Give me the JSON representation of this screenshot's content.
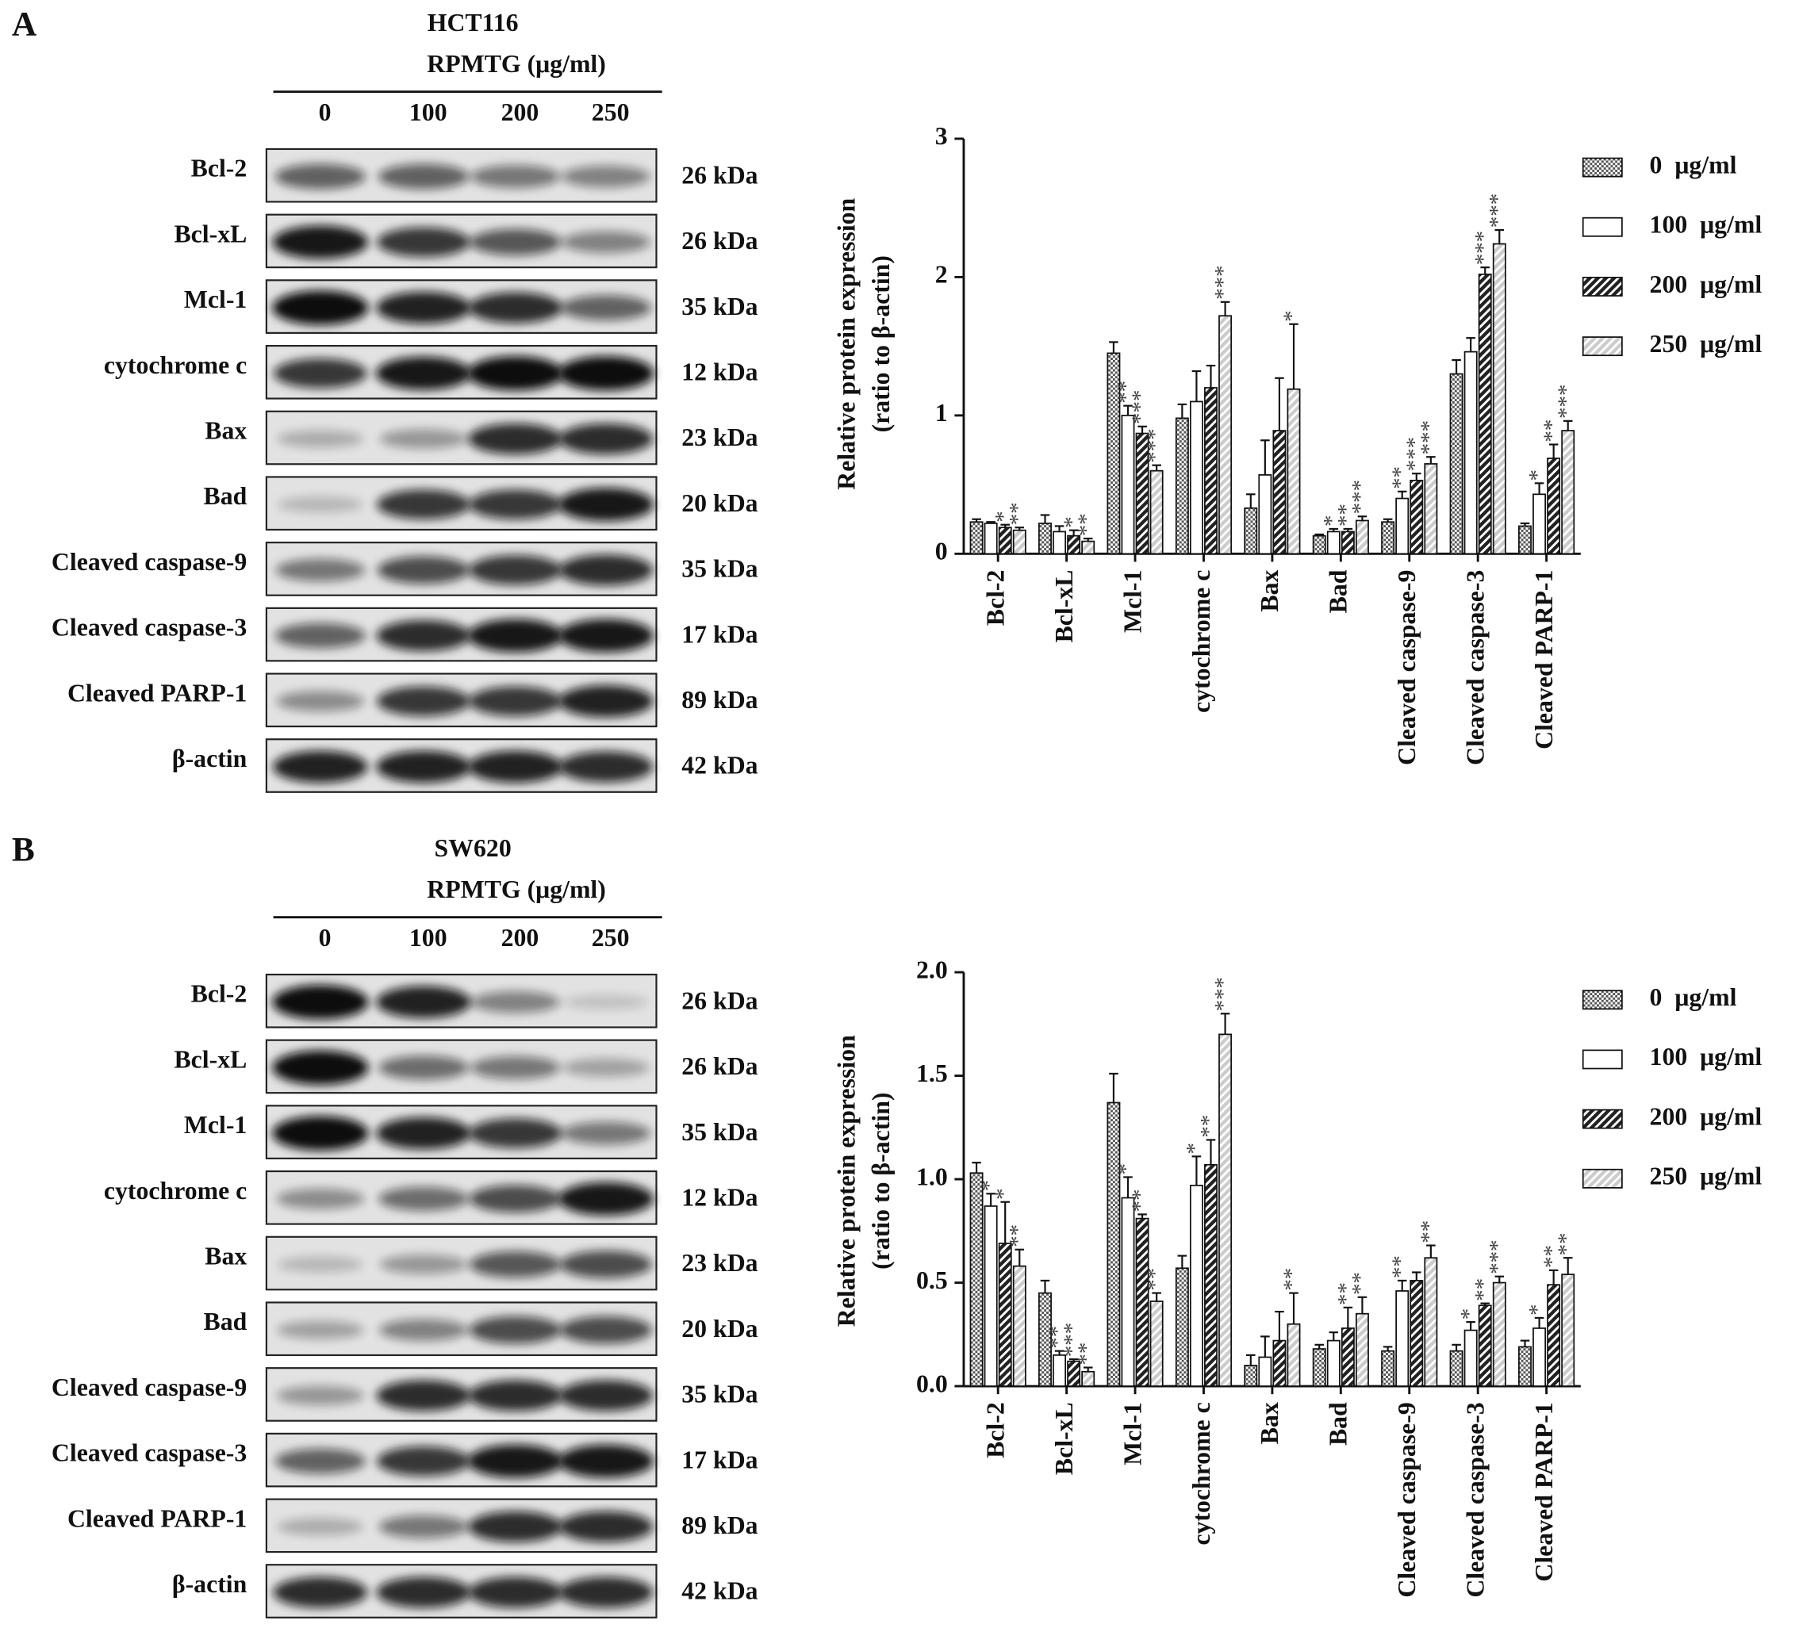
{
  "panels": [
    {
      "label": "A",
      "cell_line": "HCT116",
      "treatment": "RPMTG (μg/ml)",
      "doses": [
        "0",
        "100",
        "200",
        "250"
      ],
      "blots": [
        {
          "protein": "Bcl-2",
          "size": "26 kDa"
        },
        {
          "protein": "Bcl-xL",
          "size": "26 kDa"
        },
        {
          "protein": "Mcl-1",
          "size": "35 kDa"
        },
        {
          "protein": "cytochrome c",
          "size": "12 kDa"
        },
        {
          "protein": "Bax",
          "size": "23 kDa"
        },
        {
          "protein": "Bad",
          "size": "20 kDa"
        },
        {
          "protein": "Cleaved caspase-9",
          "size": "35 kDa"
        },
        {
          "protein": "Cleaved caspase-3",
          "size": "17 kDa"
        },
        {
          "protein": "Cleaved PARP-1",
          "size": "89 kDa"
        },
        {
          "protein": "β-actin",
          "size": "42 kDa"
        }
      ]
    },
    {
      "label": "B",
      "cell_line": "SW620",
      "treatment": "RPMTG (μg/ml)",
      "doses": [
        "0",
        "100",
        "200",
        "250"
      ],
      "blots": [
        {
          "protein": "Bcl-2",
          "size": "26 kDa"
        },
        {
          "protein": "Bcl-xL",
          "size": "26 kDa"
        },
        {
          "protein": "Mcl-1",
          "size": "35 kDa"
        },
        {
          "protein": "cytochrome c",
          "size": "12 kDa"
        },
        {
          "protein": "Bax",
          "size": "23 kDa"
        },
        {
          "protein": "Bad",
          "size": "20 kDa"
        },
        {
          "protein": "Cleaved caspase-9",
          "size": "35 kDa"
        },
        {
          "protein": "Cleaved caspase-3",
          "size": "17 kDa"
        },
        {
          "protein": "Cleaved PARP-1",
          "size": "89 kDa"
        },
        {
          "protein": "β-actin",
          "size": "42 kDa"
        }
      ]
    }
  ],
  "chart_data": [
    {
      "type": "bar",
      "ylabel": [
        "Relative protein expression",
        "(ratio to β-actin)"
      ],
      "categories": [
        "Bcl-2",
        "Bcl-xL",
        "Mcl-1",
        "cytochrome c",
        "Bax",
        "Bad",
        "Cleaved caspase-9",
        "Cleaved caspase-3",
        "Cleaved PARP-1"
      ],
      "ylim": [
        0,
        3
      ],
      "yticks": [
        0,
        1,
        2,
        3
      ],
      "grid": false,
      "legend": "right",
      "series": [
        {
          "name": "0  μg/ml",
          "color": "#555555",
          "pattern": "checker",
          "values": [
            0.23,
            0.22,
            1.45,
            0.98,
            0.33,
            0.13,
            0.23,
            1.3,
            0.2
          ],
          "errors": [
            0.02,
            0.06,
            0.08,
            0.1,
            0.1,
            0.01,
            0.02,
            0.1,
            0.02
          ],
          "significance": [
            null,
            null,
            null,
            null,
            null,
            null,
            null,
            null,
            null
          ]
        },
        {
          "name": "100  μg/ml",
          "color": "#ffffff",
          "pattern": "solid",
          "values": [
            0.22,
            0.16,
            1.0,
            1.1,
            0.57,
            0.16,
            0.4,
            1.46,
            0.43
          ],
          "errors": [
            0.01,
            0.04,
            0.07,
            0.22,
            0.25,
            0.02,
            0.05,
            0.1,
            0.08
          ],
          "significance": [
            null,
            null,
            "**",
            null,
            null,
            "*",
            "**",
            null,
            "*"
          ]
        },
        {
          "name": "200  μg/ml",
          "color": "#222222",
          "pattern": "hatch",
          "values": [
            0.19,
            0.13,
            0.87,
            1.2,
            0.89,
            0.16,
            0.53,
            2.02,
            0.69
          ],
          "errors": [
            0.02,
            0.04,
            0.05,
            0.16,
            0.38,
            0.02,
            0.05,
            0.05,
            0.1
          ],
          "significance": [
            "*",
            "*",
            "***",
            null,
            null,
            "**",
            "***",
            "***",
            "**"
          ]
        },
        {
          "name": "250  μg/ml",
          "color": "#cccccc",
          "pattern": "hatch",
          "values": [
            0.17,
            0.09,
            0.6,
            1.72,
            1.19,
            0.24,
            0.65,
            2.24,
            0.89
          ],
          "errors": [
            0.02,
            0.02,
            0.04,
            0.1,
            0.47,
            0.03,
            0.05,
            0.1,
            0.07
          ],
          "significance": [
            "**",
            "**",
            "***",
            "***",
            "*",
            "***",
            "***",
            "***",
            "***"
          ]
        }
      ]
    },
    {
      "type": "bar",
      "ylabel": [
        "Relative protein expression",
        "(ratio to β-actin)"
      ],
      "categories": [
        "Bcl-2",
        "Bcl-xL",
        "Mcl-1",
        "cytochrome c",
        "Bax",
        "Bad",
        "Cleaved caspase-9",
        "Cleaved caspase-3",
        "Cleaved PARP-1"
      ],
      "ylim": [
        0,
        2
      ],
      "yticks": [
        {
          "value": 0,
          "label": "0.0"
        },
        {
          "value": 0.5,
          "label": "0.5"
        },
        {
          "value": 1,
          "label": "1.0"
        },
        {
          "value": 1.5,
          "label": "1.5"
        },
        {
          "value": 2,
          "label": "2.0"
        }
      ],
      "grid": false,
      "legend": "right",
      "series": [
        {
          "name": "0  μg/ml",
          "color": "#555555",
          "pattern": "checker",
          "values": [
            1.03,
            0.45,
            1.37,
            0.57,
            0.1,
            0.18,
            0.17,
            0.17,
            0.19
          ],
          "errors": [
            0.05,
            0.06,
            0.14,
            0.06,
            0.05,
            0.02,
            0.02,
            0.03,
            0.03
          ],
          "significance": [
            null,
            null,
            null,
            null,
            null,
            null,
            null,
            null,
            null
          ]
        },
        {
          "name": "100  μg/ml",
          "color": "#ffffff",
          "pattern": "solid",
          "values": [
            0.87,
            0.15,
            0.91,
            0.97,
            0.14,
            0.22,
            0.46,
            0.27,
            0.28
          ],
          "errors": [
            0.06,
            0.02,
            0.1,
            0.14,
            0.1,
            0.04,
            0.05,
            0.04,
            0.05
          ],
          "significance": [
            "*",
            "**",
            "*",
            "*",
            null,
            null,
            "**",
            "*",
            "*"
          ]
        },
        {
          "name": "200  μg/ml",
          "color": "#222222",
          "pattern": "hatch",
          "values": [
            0.69,
            0.12,
            0.81,
            1.07,
            0.22,
            0.28,
            0.51,
            0.39,
            0.49
          ],
          "errors": [
            0.2,
            0.01,
            0.02,
            0.12,
            0.14,
            0.1,
            0.04,
            0.01,
            0.07
          ],
          "significance": [
            "*",
            "***",
            "**",
            "**",
            null,
            "**",
            null,
            "**",
            "**"
          ]
        },
        {
          "name": "250  μg/ml",
          "color": "#cccccc",
          "pattern": "hatch",
          "values": [
            0.58,
            0.07,
            0.41,
            1.7,
            0.3,
            0.35,
            0.62,
            0.5,
            0.54
          ],
          "errors": [
            0.08,
            0.02,
            0.04,
            0.1,
            0.15,
            0.08,
            0.06,
            0.03,
            0.08
          ],
          "significance": [
            "**",
            "**",
            "**",
            "***",
            "**",
            "**",
            "**",
            "***",
            "**"
          ]
        }
      ]
    }
  ]
}
